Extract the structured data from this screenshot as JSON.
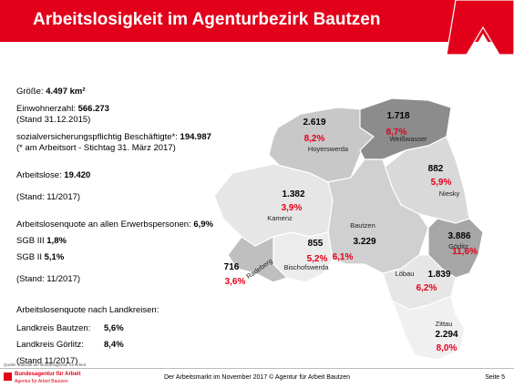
{
  "header": {
    "title": "Arbeitslosigkeit im Agenturbezirk Bautzen"
  },
  "facts": {
    "size": {
      "label": "Größe:",
      "value": "4.497 km²"
    },
    "population": {
      "label": "Einwohnerzahl:",
      "value": "566.273",
      "note": "(Stand 31.12.2015)"
    },
    "employees": {
      "label": "sozialversicherungspflichtig Beschäftigte*:",
      "value": "194.987",
      "note": "(* am Arbeitsort - Stichtag 31. März 2017)"
    },
    "unemployed": {
      "label": "Arbeitslose:",
      "value": "19.420",
      "note": "(Stand: 11/2017)"
    },
    "rate": {
      "label": "Arbeitslosenquote an allen Erwerbspersonen:",
      "value": "6,9%"
    },
    "sgb3": {
      "label": "SGB III",
      "value": "1,8%"
    },
    "sgb2": {
      "label": "SGB II",
      "value": "5,1%",
      "note": "(Stand: 11/2017)"
    },
    "districts": {
      "label": "Arbeitslosenquote nach Landkreisen:",
      "rows": [
        {
          "label": "Landkreis Bautzen:",
          "value": "5,6%"
        },
        {
          "label": "Landkreis Görlitz:",
          "value": "8,4%"
        }
      ],
      "note": "(Stand 11/2017)"
    }
  },
  "map": {
    "regions": [
      {
        "name": "Hoyerswerda",
        "count": "2.619",
        "rate": "8,2%"
      },
      {
        "name": "Weißwasser",
        "count": "1.718",
        "rate": "8,7%"
      },
      {
        "name": "Niesky",
        "count": "882",
        "rate": "5,9%"
      },
      {
        "name": "Kamenz",
        "count": "1.382",
        "rate": "3,9%"
      },
      {
        "name": "Bautzen",
        "count": "3.229",
        "rate": "6,1%"
      },
      {
        "name": "Bischofswerda",
        "count": "855",
        "rate": "5,2%"
      },
      {
        "name": "Radeberg",
        "count": "716",
        "rate": "3,6%"
      },
      {
        "name": "Görlitz",
        "count": "3.886",
        "rate": "11,6%"
      },
      {
        "name": "Löbau",
        "count": "1.839",
        "rate": "6,2%"
      },
      {
        "name": "Zittau",
        "count": "2.294",
        "rate": "8,0%"
      }
    ]
  },
  "footer": {
    "source": "Quelle: Statistik der Bundesagentur für Arbeit",
    "logo_line1": "Bundesagentur für Arbeit",
    "logo_line2": "Agentur für Arbeit Bautzen",
    "center": "Der Arbeitsmarkt im November 2017 © Agentur für Arbeit Bautzen",
    "page": "Seite 5"
  }
}
